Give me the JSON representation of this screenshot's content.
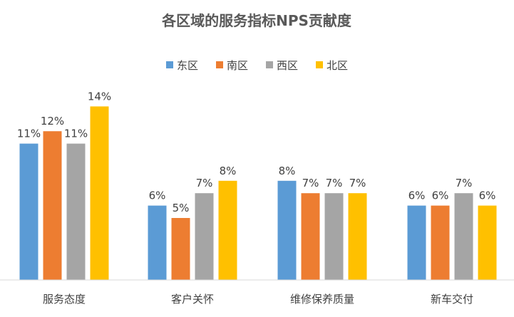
{
  "chart_data": {
    "type": "bar",
    "title": "各区域的服务指标NPS贡献度",
    "categories": [
      "服务态度",
      "客户关怀",
      "维修保养质量",
      "新车交付"
    ],
    "series": [
      {
        "name": "东区",
        "color": "#5B9BD5",
        "values": [
          11,
          6,
          8,
          6
        ],
        "labels": [
          "11%",
          "6%",
          "8%",
          "6%"
        ]
      },
      {
        "name": "南区",
        "color": "#ED7D31",
        "values": [
          12,
          5,
          7,
          6
        ],
        "labels": [
          "12%",
          "5%",
          "7%",
          "6%"
        ]
      },
      {
        "name": "西区",
        "color": "#A5A5A5",
        "values": [
          11,
          7,
          7,
          7
        ],
        "labels": [
          "11%",
          "7%",
          "7%",
          "7%"
        ]
      },
      {
        "name": "北区",
        "color": "#FFC000",
        "values": [
          14,
          8,
          7,
          6
        ],
        "labels": [
          "14%",
          "8%",
          "7%",
          "6%"
        ]
      }
    ],
    "ylim": [
      0,
      15
    ],
    "grid": false,
    "legend_position": "top"
  }
}
